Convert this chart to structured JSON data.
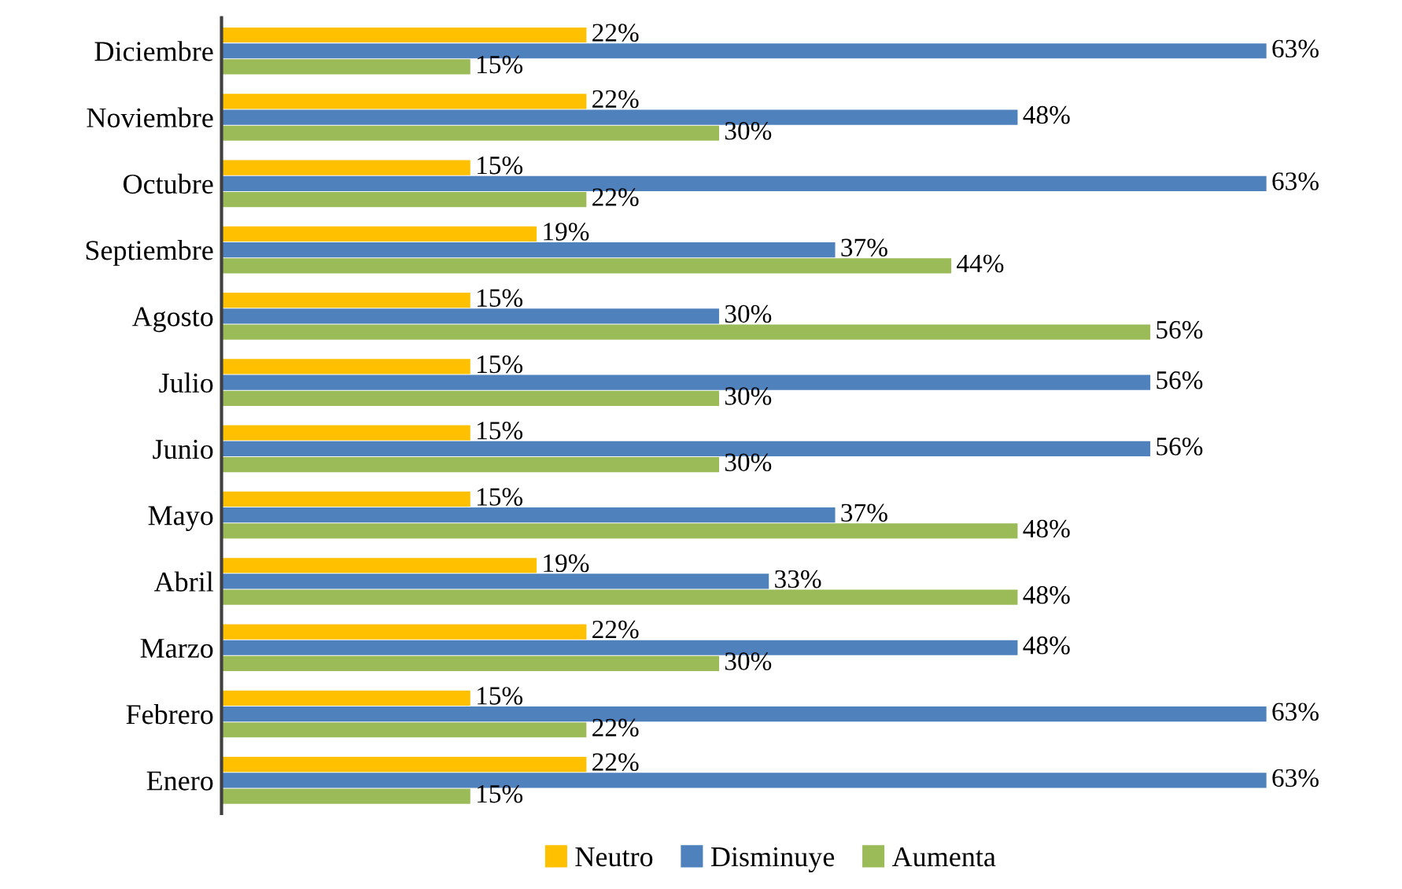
{
  "chart_data": {
    "type": "bar",
    "orientation": "horizontal",
    "legend": "bottom",
    "categories": [
      "Diciembre",
      "Noviembre",
      "Octubre",
      "Septiembre",
      "Agosto",
      "Julio",
      "Junio",
      "Mayo",
      "Abril",
      "Marzo",
      "Febrero",
      "Enero"
    ],
    "series": [
      {
        "name": "Neutro",
        "color": "#ffc000",
        "values": [
          22,
          22,
          15,
          19,
          15,
          15,
          15,
          15,
          19,
          22,
          15,
          22
        ],
        "value_labels": [
          "22%",
          "22%",
          "15%",
          "19%",
          "15%",
          "15%",
          "15%",
          "15%",
          "19%",
          "22%",
          "15%",
          "22%"
        ]
      },
      {
        "name": "Disminuye",
        "color": "#4f81bd",
        "values": [
          63,
          48,
          63,
          37,
          30,
          56,
          56,
          37,
          33,
          48,
          63,
          63
        ],
        "value_labels": [
          "63%",
          "48%",
          "63%",
          "37%",
          "30%",
          "56%",
          "56%",
          "37%",
          "33%",
          "48%",
          "63%",
          "63%"
        ]
      },
      {
        "name": "Aumenta",
        "color": "#9bbb59",
        "values": [
          15,
          30,
          22,
          44,
          56,
          30,
          30,
          48,
          48,
          30,
          22,
          15
        ],
        "value_labels": [
          "15%",
          "30%",
          "22%",
          "44%",
          "56%",
          "30%",
          "30%",
          "48%",
          "48%",
          "30%",
          "22%",
          "15%"
        ]
      }
    ]
  }
}
